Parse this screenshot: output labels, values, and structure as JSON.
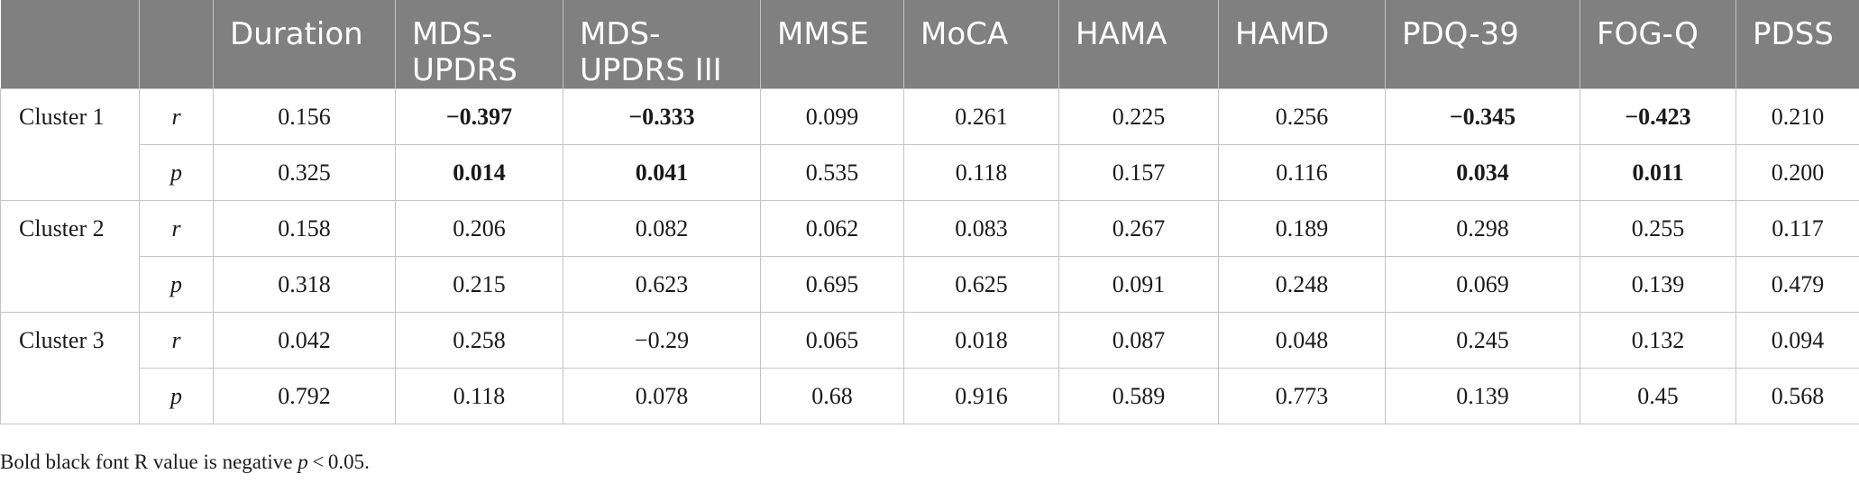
{
  "table": {
    "headers": [
      "",
      "",
      "Duration",
      "MDS-\nUPDRS",
      "MDS-\nUPDRS III",
      "MMSE",
      "MoCA",
      "HAMA",
      "HAMD",
      "PDQ-39",
      "FOG-Q",
      "PDSS"
    ],
    "clusters": [
      {
        "label": "Cluster 1",
        "rows": [
          {
            "stat": "r",
            "values": [
              "0.156",
              "−0.397",
              "−0.333",
              "0.099",
              "0.261",
              "0.225",
              "0.256",
              "−0.345",
              "−0.423",
              "0.210"
            ],
            "bold": [
              false,
              true,
              true,
              false,
              false,
              false,
              false,
              true,
              true,
              false
            ]
          },
          {
            "stat": "p",
            "values": [
              "0.325",
              "0.014",
              "0.041",
              "0.535",
              "0.118",
              "0.157",
              "0.116",
              "0.034",
              "0.011",
              "0.200"
            ],
            "bold": [
              false,
              true,
              true,
              false,
              false,
              false,
              false,
              true,
              true,
              false
            ]
          }
        ]
      },
      {
        "label": "Cluster 2",
        "rows": [
          {
            "stat": "r",
            "values": [
              "0.158",
              "0.206",
              "0.082",
              "0.062",
              "0.083",
              "0.267",
              "0.189",
              "0.298",
              "0.255",
              "0.117"
            ],
            "bold": [
              false,
              false,
              false,
              false,
              false,
              false,
              false,
              false,
              false,
              false
            ]
          },
          {
            "stat": "p",
            "values": [
              "0.318",
              "0.215",
              "0.623",
              "0.695",
              "0.625",
              "0.091",
              "0.248",
              "0.069",
              "0.139",
              "0.479"
            ],
            "bold": [
              false,
              false,
              false,
              false,
              false,
              false,
              false,
              false,
              false,
              false
            ]
          }
        ]
      },
      {
        "label": "Cluster 3",
        "rows": [
          {
            "stat": "r",
            "values": [
              "0.042",
              "0.258",
              "−0.29",
              "0.065",
              "0.018",
              "0.087",
              "0.048",
              "0.245",
              "0.132",
              "0.094"
            ],
            "bold": [
              false,
              false,
              false,
              false,
              false,
              false,
              false,
              false,
              false,
              false
            ]
          },
          {
            "stat": "p",
            "values": [
              "0.792",
              "0.118",
              "0.078",
              "0.68",
              "0.916",
              "0.589",
              "0.773",
              "0.139",
              "0.45",
              "0.568"
            ],
            "bold": [
              false,
              false,
              false,
              false,
              false,
              false,
              false,
              false,
              false,
              false
            ]
          }
        ]
      }
    ]
  },
  "footnote": {
    "prefix": "Bold black font R value is negative ",
    "italic": "p",
    "suffix": " < 0.05."
  },
  "colors": {
    "header_bg": "#808080",
    "header_text": "#ffffff",
    "grid": "#c4c4c4"
  }
}
